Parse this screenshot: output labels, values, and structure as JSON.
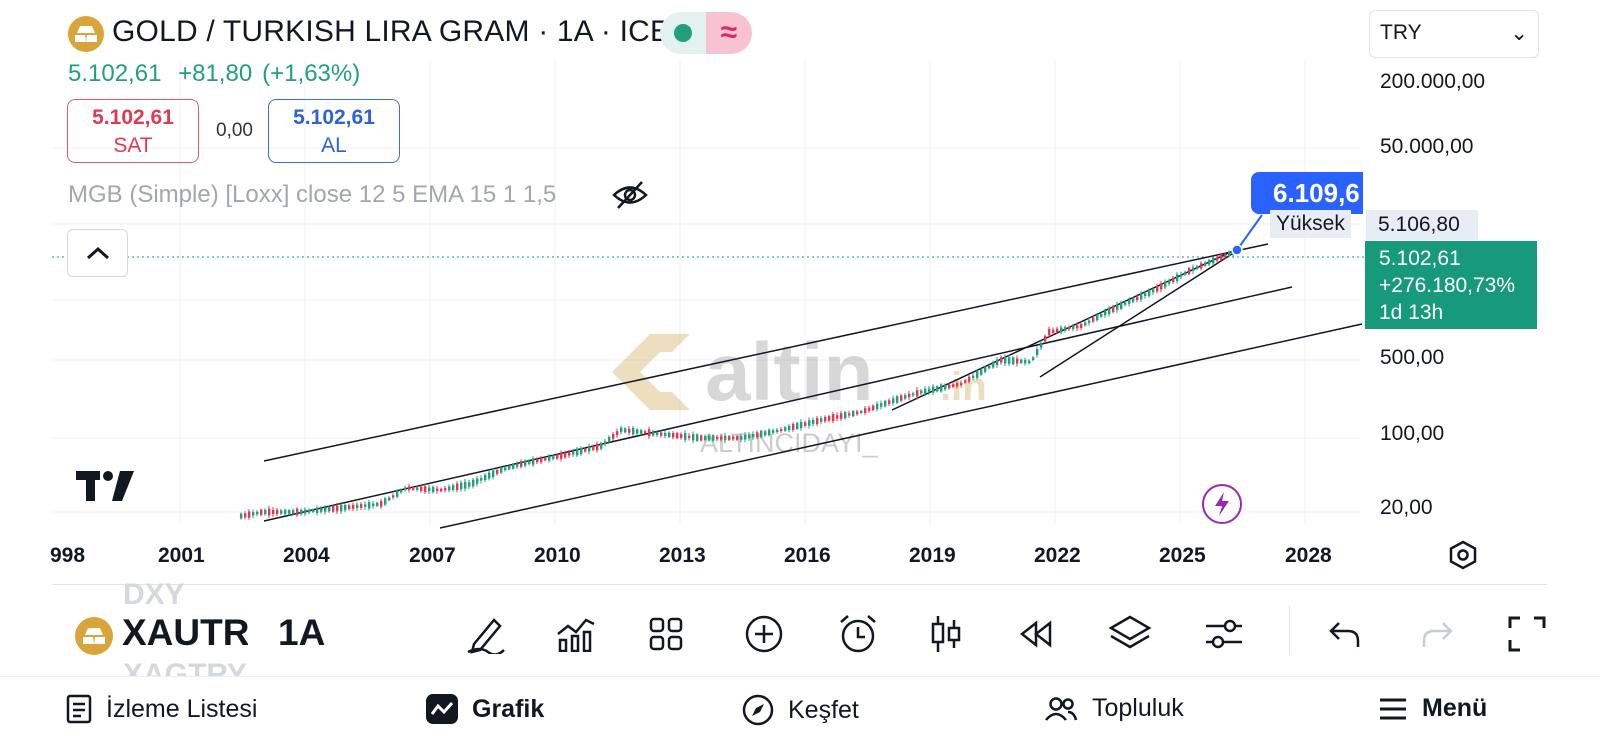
{
  "header": {
    "title": "GOLD / TURKISH LIRA GRAM · 1A · ICE",
    "price": "5.102,61",
    "change": "+81,80",
    "change_pct": "(+1,63%)",
    "sell_value": "5.102,61",
    "sell_label": "SAT",
    "spread": "0,00",
    "buy_value": "5.102,61",
    "buy_label": "AL",
    "indicator": "MGB (Simple) [Loxx] close 12 5 EMA 15 1 1,5"
  },
  "chart": {
    "currency": "TRY",
    "y_labels": [
      "200.000,00",
      "50.000,00",
      "500,00",
      "100,00",
      "20,00"
    ],
    "x_labels": [
      "998",
      "2001",
      "2004",
      "2007",
      "2010",
      "2013",
      "2016",
      "2019",
      "2022",
      "2025",
      "2028"
    ],
    "high_value": "6.109,6",
    "high_label": "Yüksek",
    "high_axis_value": "5.106,80",
    "last_price": "5.102,61",
    "last_change": "+276.180,73%",
    "last_countdown": "1d 13h",
    "watermark_brand": "altin.in",
    "watermark_user": "ALTINCIDAYI_"
  },
  "toolbar": {
    "ghost_prev": "DXY",
    "symbol": "XAUTRY",
    "ghost_next": "XAGTRY",
    "interval": "1A"
  },
  "nav": {
    "watchlist": "İzleme Listesi",
    "chart": "Grafik",
    "explore": "Keşfet",
    "community": "Topluluk",
    "menu": "Menü"
  },
  "colors": {
    "up": "#22a07c",
    "down": "#e03a4e",
    "accent": "#2962ff",
    "last_price_bg": "#179a7c"
  }
}
